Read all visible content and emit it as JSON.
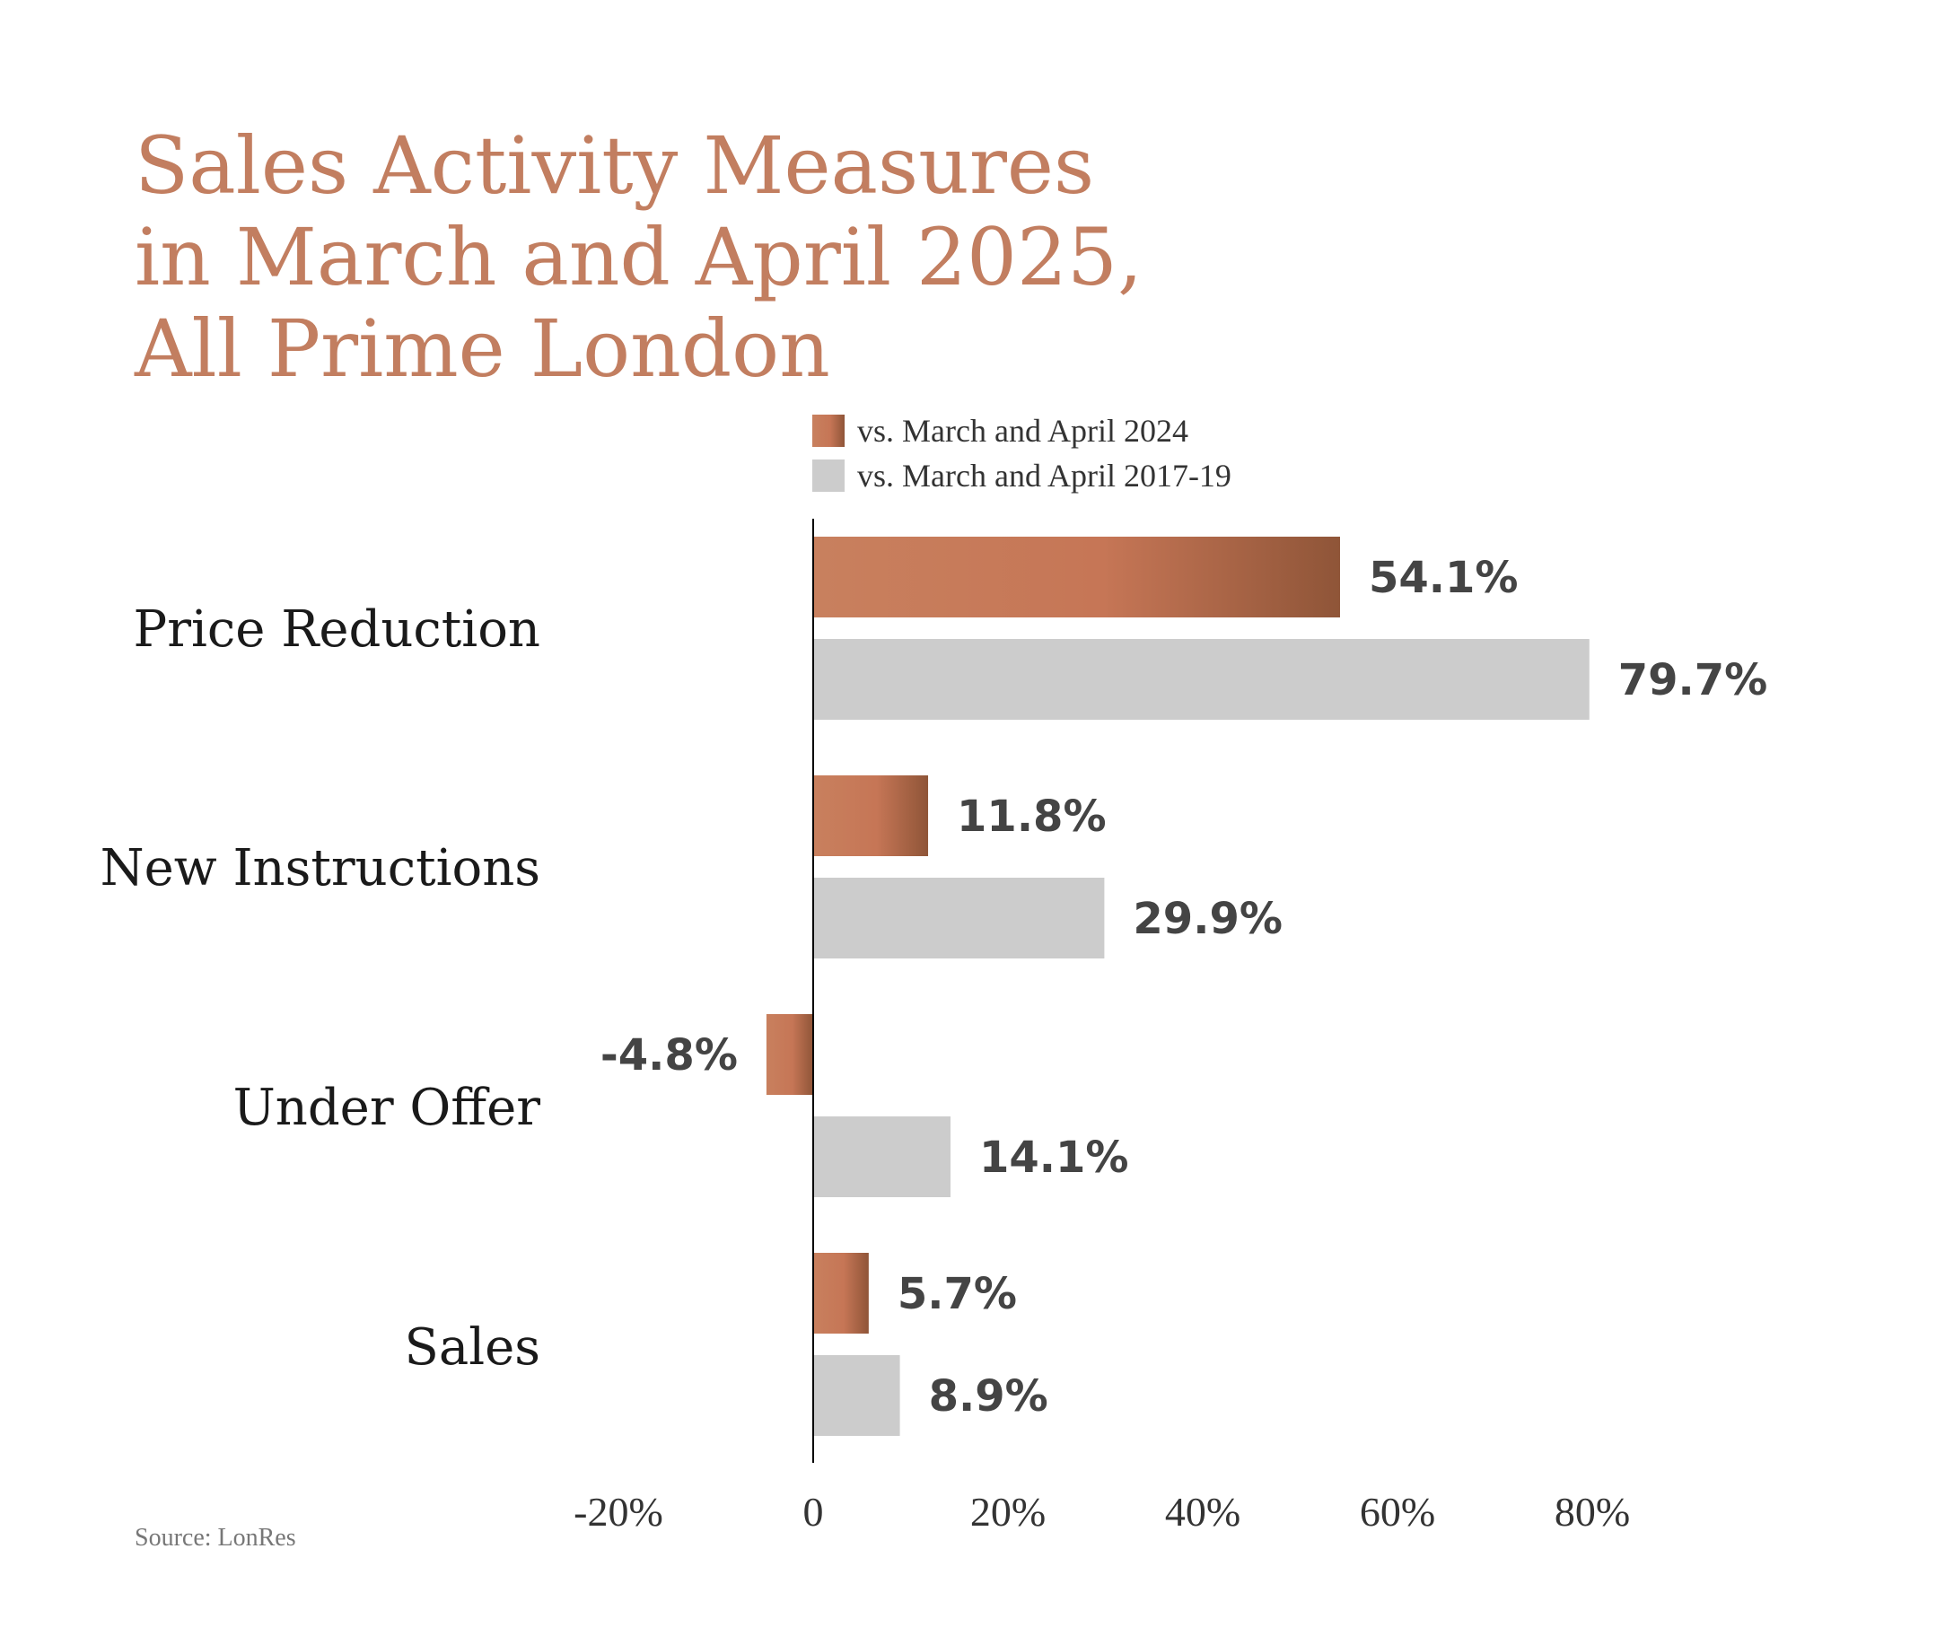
{
  "title_lines": [
    "Sales Activity Measures",
    "in March and April 2025,",
    "All Prime London"
  ],
  "source": "Source: LonRes",
  "colors": {
    "title": "#c27e60",
    "series_2024_start": "#c8805e",
    "series_2024_mid": "#c67656",
    "series_2024_end": "#8f5538",
    "series_2017_19": "#cccccc",
    "axis": "#000000",
    "value_text": "#444444"
  },
  "chart_data": {
    "type": "bar",
    "orientation": "horizontal",
    "title": "Sales Activity Measures in March and April 2025, All Prime London",
    "categories": [
      "Price Reduction",
      "New Instructions",
      "Under Offer",
      "Sales"
    ],
    "series": [
      {
        "name": "vs. March and April 2024",
        "values": [
          54.1,
          11.8,
          -4.8,
          5.7
        ],
        "labels": [
          "54.1%",
          "11.8%",
          "-4.8%",
          "5.7%"
        ]
      },
      {
        "name": "vs. March and April 2017-19",
        "values": [
          79.7,
          29.9,
          14.1,
          8.9
        ],
        "labels": [
          "79.7%",
          "29.9%",
          "14.1%",
          "8.9%"
        ]
      }
    ],
    "xlim": [
      -20,
      80
    ],
    "x_ticks": [
      -20,
      0,
      20,
      40,
      60,
      80
    ],
    "x_tick_labels": [
      "-20%",
      "0",
      "20%",
      "40%",
      "60%",
      "80%"
    ],
    "legend_position": "top",
    "grid": false
  }
}
